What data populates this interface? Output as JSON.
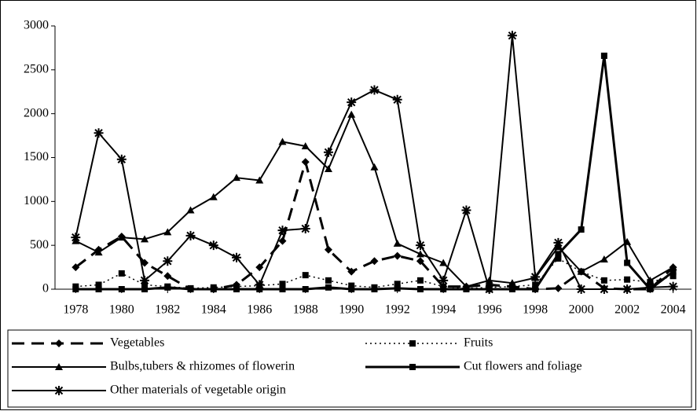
{
  "chart_data": {
    "type": "line",
    "x": [
      1978,
      1979,
      1980,
      1981,
      1982,
      1983,
      1984,
      1985,
      1986,
      1987,
      1988,
      1989,
      1990,
      1991,
      1992,
      1993,
      1994,
      1995,
      1996,
      1997,
      1998,
      1999,
      2000,
      2001,
      2002,
      2003,
      2004
    ],
    "xlim": [
      1977.1,
      2004.8
    ],
    "xticks": [
      1978,
      1980,
      1982,
      1984,
      1986,
      1988,
      1990,
      1992,
      1994,
      1996,
      1998,
      2000,
      2002,
      2004
    ],
    "ylim": [
      0,
      3000
    ],
    "yticks": [
      0,
      500,
      1000,
      1500,
      2000,
      2500,
      3000
    ],
    "grid": false,
    "series": [
      {
        "name": "Vegetables",
        "color": "#000000",
        "line": "dashed",
        "marker": "diamond",
        "values": [
          250,
          450,
          600,
          300,
          150,
          0,
          0,
          50,
          250,
          550,
          1450,
          450,
          200,
          320,
          380,
          320,
          30,
          30,
          50,
          30,
          0,
          10,
          200,
          10,
          0,
          0,
          250
        ]
      },
      {
        "name": "Fruits",
        "color": "#000000",
        "line": "dotted",
        "marker": "square",
        "values": [
          30,
          50,
          180,
          50,
          30,
          10,
          20,
          30,
          40,
          60,
          160,
          100,
          40,
          20,
          60,
          100,
          30,
          10,
          20,
          30,
          50,
          350,
          200,
          100,
          110,
          80,
          150
        ]
      },
      {
        "name": "Bulbs,tubers & rhizomes of flowerin",
        "color": "#000000",
        "line": "solid",
        "marker": "triangle",
        "values": [
          550,
          420,
          590,
          570,
          650,
          900,
          1050,
          1270,
          1240,
          1680,
          1630,
          1370,
          1990,
          1390,
          520,
          400,
          300,
          30,
          100,
          70,
          130,
          480,
          200,
          340,
          540,
          100,
          250
        ]
      },
      {
        "name": "Cut flowers and foliage",
        "color": "#000000",
        "line": "thick",
        "marker": "square",
        "values": [
          0,
          0,
          0,
          0,
          20,
          0,
          0,
          0,
          0,
          0,
          0,
          20,
          0,
          0,
          10,
          0,
          0,
          0,
          0,
          0,
          0,
          400,
          680,
          2660,
          300,
          0,
          200
        ]
      },
      {
        "name": "Other materials of vegetable origin",
        "color": "#000000",
        "line": "solid",
        "marker": "asterisk",
        "values": [
          590,
          1780,
          1480,
          100,
          320,
          610,
          500,
          360,
          50,
          670,
          690,
          1560,
          2130,
          2270,
          2160,
          500,
          100,
          900,
          0,
          2890,
          140,
          530,
          0,
          0,
          0,
          20,
          30
        ]
      }
    ]
  }
}
